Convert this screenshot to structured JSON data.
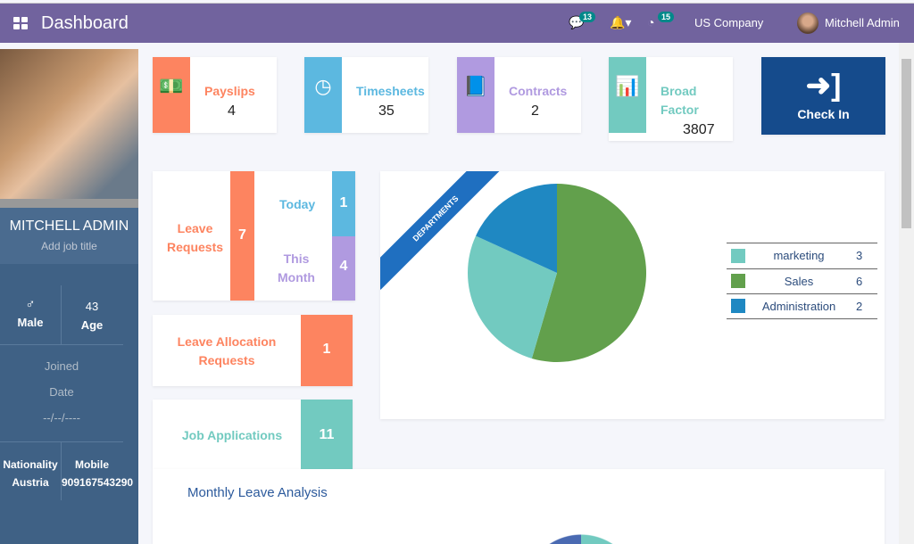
{
  "header": {
    "title": "Dashboard",
    "messages_count": "13",
    "activities_count": "15",
    "company": "US Company",
    "user": "Mitchell Admin"
  },
  "profile": {
    "name": "MITCHELL ADMIN",
    "job_title": "Add job title",
    "gender": "Male",
    "gender_icon": "♂",
    "age": "43",
    "age_label": "Age",
    "joined_label1": "Joined",
    "joined_label2": "Date",
    "joined_value": "--/--/----",
    "nationality_label": "Nationality",
    "nationality": "Austria",
    "mobile_label": "Mobile",
    "mobile": "909167543290"
  },
  "cards": {
    "payslips": {
      "label": "Payslips",
      "value": "4",
      "color": "#fd8460"
    },
    "timesheets": {
      "label": "Timesheets",
      "value": "35",
      "color": "#5cb8e0"
    },
    "contracts": {
      "label": "Contracts",
      "value": "2",
      "color": "#b09ae0"
    },
    "broad_factor": {
      "label1": "Broad",
      "label2": "Factor",
      "value": "3807",
      "color": "#72cac0"
    },
    "check_in": {
      "label": "Check In",
      "color": "#154b8c"
    }
  },
  "leave": {
    "label1": "Leave",
    "label2": "Requests",
    "total": "7",
    "today_label": "Today",
    "today": "1",
    "month_label1": "This",
    "month_label2": "Month",
    "month": "4"
  },
  "allocation": {
    "label1": "Leave Allocation",
    "label2": "Requests",
    "value": "1"
  },
  "jobs": {
    "label": "Job Applications",
    "value": "11"
  },
  "departments": {
    "ribbon": "DEPARTMENTS"
  },
  "monthly": {
    "title": "Monthly Leave Analysis"
  },
  "chart_data": {
    "type": "pie",
    "categories": [
      "marketing",
      "Sales",
      "Administration"
    ],
    "values": [
      3,
      6,
      2
    ],
    "colors": [
      "#72cac0",
      "#62a04c",
      "#1f88c2"
    ],
    "legend": "right"
  }
}
